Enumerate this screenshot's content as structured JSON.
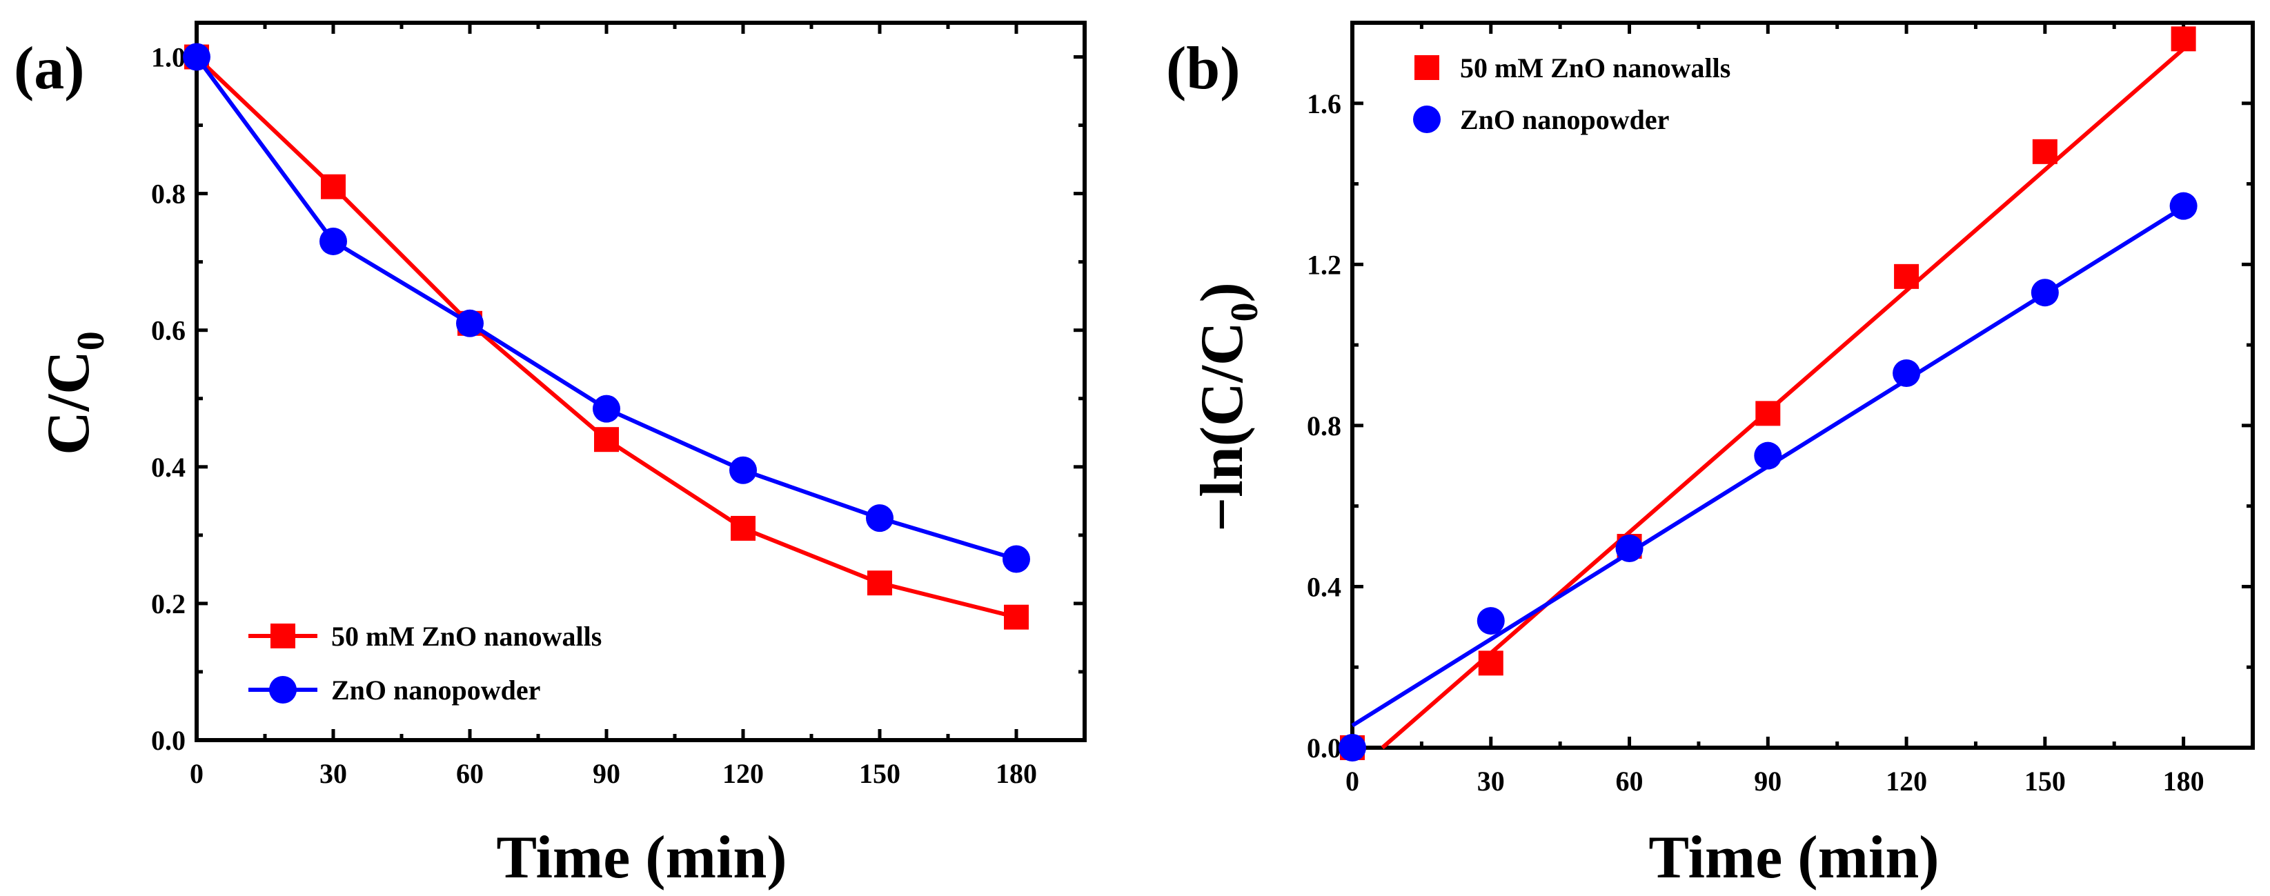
{
  "chart_data": [
    {
      "type": "line",
      "panel_label": "(a)",
      "xlabel": "Time (min)",
      "ylabel_main": "C/C",
      "ylabel_sub": "0",
      "xlim": [
        0,
        195
      ],
      "ylim": [
        0,
        1.05
      ],
      "xticks": [
        "0",
        "30",
        "60",
        "90",
        "120",
        "150",
        "180"
      ],
      "yticks": [
        "0.0",
        "0.2",
        "0.4",
        "0.6",
        "0.8",
        "1.0"
      ],
      "legend_position": "lower-left",
      "x": [
        0,
        30,
        60,
        90,
        120,
        150,
        180
      ],
      "series": [
        {
          "name": "50 mM ZnO nanowalls",
          "color": "#ff0000",
          "marker": "square",
          "values": [
            1.0,
            0.81,
            0.61,
            0.44,
            0.31,
            0.23,
            0.18
          ]
        },
        {
          "name": "ZnO nanopowder",
          "color": "#0000ff",
          "marker": "circle",
          "values": [
            1.0,
            0.73,
            0.61,
            0.485,
            0.395,
            0.325,
            0.265
          ]
        }
      ]
    },
    {
      "type": "scatter",
      "panel_label": "(b)",
      "xlabel": "Time (min)",
      "ylabel_main": "−ln(C/C",
      "ylabel_sub": "0",
      "ylabel_tail": ")",
      "xlim": [
        0,
        195
      ],
      "ylim": [
        0,
        1.8
      ],
      "xticks": [
        "0",
        "30",
        "60",
        "90",
        "120",
        "150",
        "180"
      ],
      "yticks": [
        "0.0",
        "0.4",
        "0.8",
        "1.2",
        "1.6"
      ],
      "legend_position": "top-left",
      "x": [
        0,
        30,
        60,
        90,
        120,
        150,
        180
      ],
      "series": [
        {
          "name": "50 mM ZnO nanowalls",
          "color": "#ff0000",
          "marker": "square",
          "values": [
            0.0,
            0.21,
            0.5,
            0.83,
            1.17,
            1.48,
            1.76
          ],
          "fit": {
            "slope": 0.01,
            "intercept": -0.065
          }
        },
        {
          "name": "ZnO nanopowder",
          "color": "#0000ff",
          "marker": "circle",
          "values": [
            0.0,
            0.315,
            0.495,
            0.725,
            0.93,
            1.13,
            1.345
          ],
          "fit": {
            "slope": 0.00715,
            "intercept": 0.055
          }
        }
      ]
    }
  ]
}
